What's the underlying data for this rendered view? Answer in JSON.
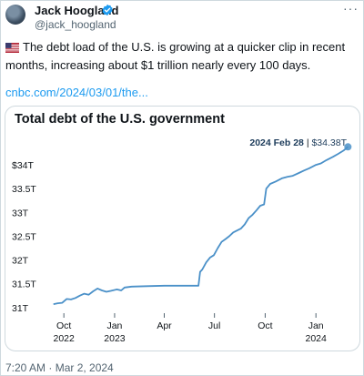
{
  "tweet": {
    "author_name": "Jack Hoogland",
    "handle": "@jack_hoogland",
    "more_label": "···",
    "text": "The debt load of the U.S. is growing at a quicker clip in recent months, increasing about $1 trillion nearly every 100 days.",
    "link": "cnbc.com/2024/03/01/the...",
    "timestamp": "7:20 AM · Mar 2, 2024",
    "flag_icon": "us-flag-icon",
    "verified_color": "#1d9bf0"
  },
  "chart_data": {
    "type": "line",
    "title": "Total debt of the U.S. government",
    "annotation": {
      "date_label": "2024 Feb 28",
      "value_label": "$34.38T"
    },
    "y_ticks": [
      "$34T",
      "33.5T",
      "33T",
      "32.5T",
      "32T",
      "31.5T",
      "31T"
    ],
    "y_tick_values": [
      34,
      33.5,
      33,
      32.5,
      32,
      31.5,
      31
    ],
    "ylim": [
      30.9,
      34.5
    ],
    "x_ticks": [
      {
        "line1": "Oct",
        "line2": "2022",
        "date": "2022-10-01"
      },
      {
        "line1": "Jan",
        "line2": "2023",
        "date": "2023-01-01"
      },
      {
        "line1": "Apr",
        "line2": "",
        "date": "2023-04-01"
      },
      {
        "line1": "Jul",
        "line2": "",
        "date": "2023-07-01"
      },
      {
        "line1": "Oct",
        "line2": "",
        "date": "2023-10-01"
      },
      {
        "line1": "Jan",
        "line2": "2024",
        "date": "2024-01-01"
      }
    ],
    "xlim": [
      "2022-09-01",
      "2024-03-10"
    ],
    "line_color": "#4a90c8",
    "series": [
      {
        "points": [
          [
            "2022-09-12",
            31.07
          ],
          [
            "2022-09-20",
            31.09
          ],
          [
            "2022-09-28",
            31.1
          ],
          [
            "2022-10-06",
            31.18
          ],
          [
            "2022-10-14",
            31.17
          ],
          [
            "2022-10-22",
            31.2
          ],
          [
            "2022-10-30",
            31.25
          ],
          [
            "2022-11-07",
            31.29
          ],
          [
            "2022-11-15",
            31.27
          ],
          [
            "2022-11-23",
            31.34
          ],
          [
            "2022-12-01",
            31.4
          ],
          [
            "2022-12-09",
            31.36
          ],
          [
            "2022-12-17",
            31.33
          ],
          [
            "2022-12-25",
            31.35
          ],
          [
            "2023-01-05",
            31.38
          ],
          [
            "2023-01-13",
            31.36
          ],
          [
            "2023-01-19",
            31.42
          ],
          [
            "2023-02-01",
            31.44
          ],
          [
            "2023-03-01",
            31.45
          ],
          [
            "2023-04-01",
            31.46
          ],
          [
            "2023-05-01",
            31.46
          ],
          [
            "2023-06-02",
            31.46
          ],
          [
            "2023-06-05",
            31.75
          ],
          [
            "2023-06-09",
            31.8
          ],
          [
            "2023-06-16",
            31.95
          ],
          [
            "2023-06-23",
            32.05
          ],
          [
            "2023-06-30",
            32.1
          ],
          [
            "2023-07-07",
            32.25
          ],
          [
            "2023-07-14",
            32.38
          ],
          [
            "2023-07-21",
            32.44
          ],
          [
            "2023-07-28",
            32.5
          ],
          [
            "2023-08-04",
            32.58
          ],
          [
            "2023-08-11",
            32.62
          ],
          [
            "2023-08-18",
            32.66
          ],
          [
            "2023-08-25",
            32.75
          ],
          [
            "2023-09-01",
            32.88
          ],
          [
            "2023-09-08",
            32.95
          ],
          [
            "2023-09-15",
            33.04
          ],
          [
            "2023-09-22",
            33.14
          ],
          [
            "2023-09-29",
            33.17
          ],
          [
            "2023-10-03",
            33.5
          ],
          [
            "2023-10-10",
            33.6
          ],
          [
            "2023-10-20",
            33.65
          ],
          [
            "2023-11-01",
            33.72
          ],
          [
            "2023-11-10",
            33.75
          ],
          [
            "2023-11-20",
            33.77
          ],
          [
            "2023-12-01",
            33.83
          ],
          [
            "2023-12-10",
            33.88
          ],
          [
            "2023-12-20",
            33.93
          ],
          [
            "2024-01-01",
            34.0
          ],
          [
            "2024-01-10",
            34.03
          ],
          [
            "2024-01-20",
            34.1
          ],
          [
            "2024-02-01",
            34.17
          ],
          [
            "2024-02-10",
            34.23
          ],
          [
            "2024-02-20",
            34.3
          ],
          [
            "2024-02-28",
            34.38
          ]
        ]
      }
    ],
    "grid": false,
    "legend": "none"
  }
}
